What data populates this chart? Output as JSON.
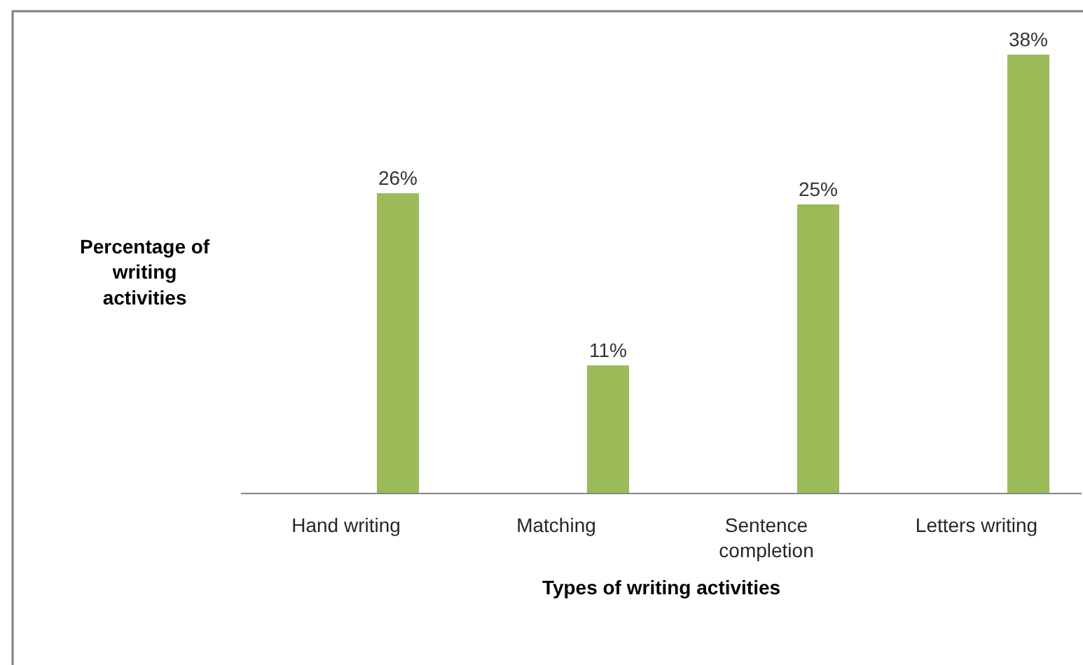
{
  "chart_data": {
    "type": "bar",
    "xlabel": "Types of writing activities",
    "ylabel": "Percentage of writing activities",
    "categories": [
      "Hand writing",
      "Matching",
      "Sentence completion",
      "Letters writing"
    ],
    "values": [
      26,
      11,
      25,
      38
    ],
    "value_labels": [
      "26%",
      "11%",
      "25%",
      "38%"
    ],
    "color": "#9bbb59"
  }
}
